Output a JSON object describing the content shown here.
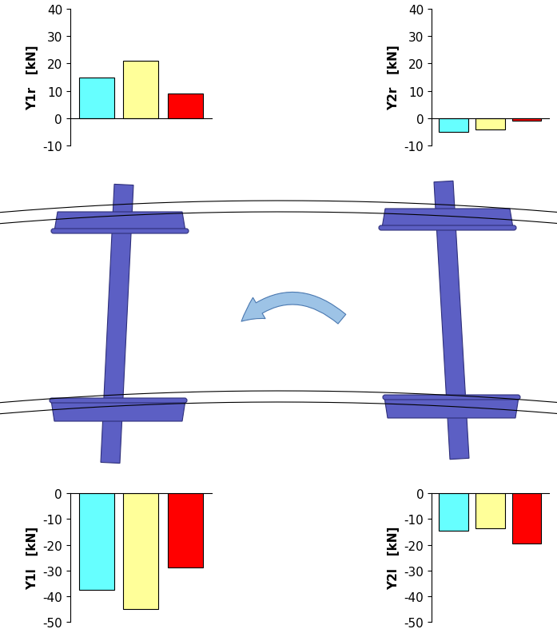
{
  "chart_data": [
    {
      "type": "bar",
      "y_label": "Y1r   [kN]",
      "categories": [
        null,
        null,
        null
      ],
      "values": [
        15,
        21,
        9
      ],
      "colors": [
        "#66FFFF",
        "#FFFF99",
        "#FF0000"
      ],
      "ylim": [
        -10,
        40
      ],
      "yticks": [
        -10,
        0,
        10,
        20,
        30,
        40
      ],
      "tick_labels": "y"
    },
    {
      "type": "bar",
      "y_label": "Y2r   [kN]",
      "categories": [
        null,
        null,
        null
      ],
      "values": [
        -5,
        -4,
        -1
      ],
      "colors": [
        "#66FFFF",
        "#FFFF99",
        "#FF0000"
      ],
      "ylim": [
        -10,
        40
      ],
      "yticks": [
        -10,
        0,
        10,
        20,
        30,
        40
      ],
      "tick_labels": "y"
    },
    {
      "type": "bar",
      "y_label": "Y1l   [kN]",
      "categories": [
        null,
        null,
        null
      ],
      "values": [
        -37.5,
        -45,
        -29
      ],
      "colors": [
        "#66FFFF",
        "#FFFF99",
        "#FF0000"
      ],
      "ylim": [
        -50,
        0
      ],
      "yticks": [
        -50,
        -40,
        -30,
        -20,
        -10,
        0
      ],
      "tick_labels": "y"
    },
    {
      "type": "bar",
      "y_label": "Y2l   [kN]",
      "categories": [
        null,
        null,
        null
      ],
      "values": [
        -14.5,
        -13.5,
        -19.5
      ],
      "colors": [
        "#66FFFF",
        "#FFFF99",
        "#FF0000"
      ],
      "ylim": [
        -50,
        0
      ],
      "yticks": [
        -50,
        -40,
        -30,
        -20,
        -10,
        0
      ],
      "tick_labels": "y"
    }
  ]
}
